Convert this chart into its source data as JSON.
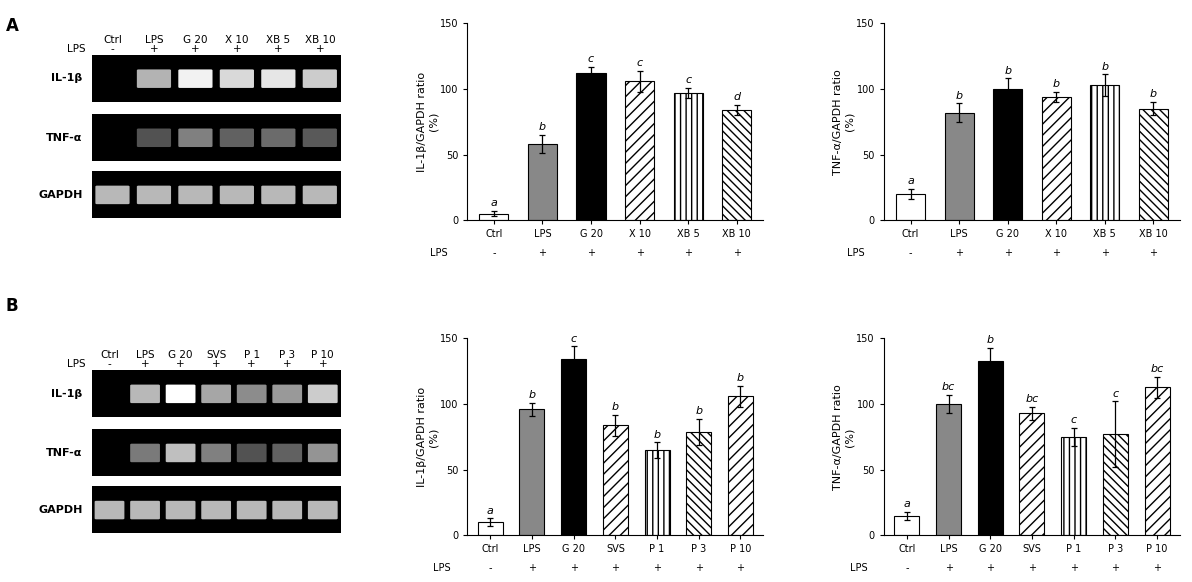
{
  "panel_A_IL1b": {
    "categories": [
      "Ctrl",
      "LPS",
      "G 20",
      "X 10",
      "XB 5",
      "XB 10"
    ],
    "lps_labels": [
      "-",
      "+",
      "+",
      "+",
      "+",
      "+"
    ],
    "values": [
      5,
      58,
      112,
      106,
      97,
      84
    ],
    "errors": [
      2,
      7,
      5,
      8,
      4,
      4
    ],
    "letters": [
      "a",
      "b",
      "c",
      "c",
      "c",
      "d"
    ],
    "ylabel": "IL-1β/GAPDH ratio\n(%)"
  },
  "panel_A_TNFa": {
    "categories": [
      "Ctrl",
      "LPS",
      "G 20",
      "X 10",
      "XB 5",
      "XB 10"
    ],
    "lps_labels": [
      "-",
      "+",
      "+",
      "+",
      "+",
      "+"
    ],
    "values": [
      20,
      82,
      100,
      94,
      103,
      85
    ],
    "errors": [
      4,
      7,
      8,
      4,
      8,
      5
    ],
    "letters": [
      "a",
      "b",
      "b",
      "b",
      "b",
      "b"
    ],
    "ylabel": "TNF-α/GAPDH ratio\n(%)"
  },
  "panel_B_IL1b": {
    "categories": [
      "Ctrl",
      "LPS",
      "G 20",
      "SVS",
      "P 1",
      "P 3",
      "P 10"
    ],
    "lps_labels": [
      "-",
      "+",
      "+",
      "+",
      "+",
      "+",
      "+"
    ],
    "values": [
      10,
      96,
      134,
      84,
      65,
      79,
      106
    ],
    "errors": [
      3,
      5,
      10,
      8,
      6,
      10,
      8
    ],
    "letters": [
      "a",
      "b",
      "c",
      "b",
      "b",
      "b",
      "b"
    ],
    "ylabel": "IL-1β/GAPDH ratio\n(%)"
  },
  "panel_B_TNFa": {
    "categories": [
      "Ctrl",
      "LPS",
      "G 20",
      "SVS",
      "P 1",
      "P 3",
      "P 10"
    ],
    "lps_labels": [
      "-",
      "+",
      "+",
      "+",
      "+",
      "+",
      "+"
    ],
    "values": [
      15,
      100,
      133,
      93,
      75,
      77,
      113
    ],
    "errors": [
      3,
      7,
      10,
      5,
      7,
      25,
      8
    ],
    "letters": [
      "a",
      "bc",
      "b",
      "bc",
      "c",
      "c",
      "bc"
    ],
    "ylabel": "TNF-α/GAPDH ratio\n(%)"
  },
  "bar_colors_A": [
    "white",
    "#888888",
    "black",
    "white",
    "white",
    "white"
  ],
  "bar_hatches_A_IL1b": [
    "",
    "",
    "",
    "///",
    "|||",
    "\\\\\\\\"
  ],
  "bar_hatches_A_TNFa": [
    "",
    "",
    "",
    "///",
    "|||",
    "\\\\\\\\"
  ],
  "bar_colors_B": [
    "white",
    "#888888",
    "black",
    "white",
    "white",
    "white",
    "white"
  ],
  "bar_hatches_B_IL1b": [
    "",
    "",
    "",
    "///",
    "|||",
    "\\\\\\\\",
    "///"
  ],
  "bar_hatches_B_TNFa": [
    "",
    "",
    "",
    "///",
    "|||",
    "\\\\\\\\",
    "///"
  ],
  "ylim": [
    0,
    150
  ],
  "yticks": [
    0,
    50,
    100,
    150
  ],
  "gel_A_cols": [
    "Ctrl",
    "LPS",
    "G 20",
    "X 10",
    "XB 5",
    "XB 10"
  ],
  "gel_A_lps": [
    "-",
    "+",
    "+",
    "+",
    "+",
    "+"
  ],
  "gel_B_cols": [
    "Ctrl",
    "LPS",
    "G 20",
    "SVS",
    "P 1",
    "P 3",
    "P 10"
  ],
  "gel_B_lps": [
    "-",
    "+",
    "+",
    "+",
    "+",
    "+",
    "+"
  ],
  "gel_row_labels": [
    "IL-1β",
    "TNF-α",
    "GAPDH"
  ],
  "gel_A_IL1b_bright": [
    0.0,
    0.7,
    0.95,
    0.85,
    0.9,
    0.8
  ],
  "gel_A_TNFa_bright": [
    0.0,
    0.32,
    0.5,
    0.38,
    0.42,
    0.35
  ],
  "gel_A_GAPDH_bright": [
    0.72,
    0.72,
    0.72,
    0.72,
    0.72,
    0.72
  ],
  "gel_B_IL1b_bright": [
    0.0,
    0.72,
    1.0,
    0.65,
    0.55,
    0.6,
    0.8
  ],
  "gel_B_TNFa_bright": [
    0.0,
    0.48,
    0.75,
    0.5,
    0.32,
    0.38,
    0.58
  ],
  "gel_B_GAPDH_bright": [
    0.72,
    0.72,
    0.72,
    0.72,
    0.72,
    0.72,
    0.72
  ],
  "font_size_ylabel": 8,
  "font_size_tick": 7,
  "font_size_letter": 8,
  "font_size_panel": 12,
  "font_size_gel_label": 8,
  "background": "white",
  "edgecolor": "black"
}
